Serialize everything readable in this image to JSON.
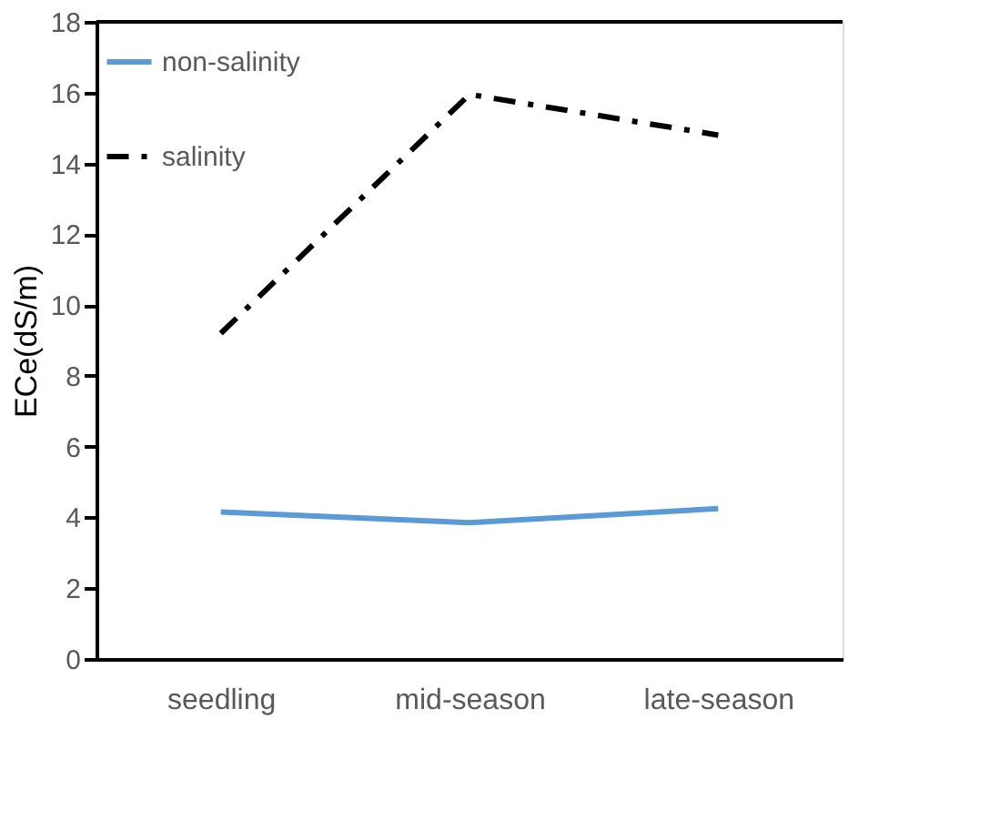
{
  "chart_data": {
    "type": "line",
    "ylabel": "ECe(dS/m)",
    "categories": [
      "seedling",
      "mid-season",
      "late-season"
    ],
    "series": [
      {
        "name": "non-salinity",
        "color": "#5b9bd5",
        "line_style": "solid",
        "values": [
          4.15,
          3.85,
          4.25
        ]
      },
      {
        "name": "salinity",
        "color": "#000000",
        "line_style": "dashdot",
        "values": [
          9.2,
          15.95,
          14.8
        ]
      }
    ],
    "ylim": [
      0,
      18
    ],
    "yticks": [
      0,
      2,
      4,
      6,
      8,
      10,
      12,
      14,
      16,
      18
    ],
    "grid": false,
    "legend": "top left",
    "marker": "none"
  }
}
